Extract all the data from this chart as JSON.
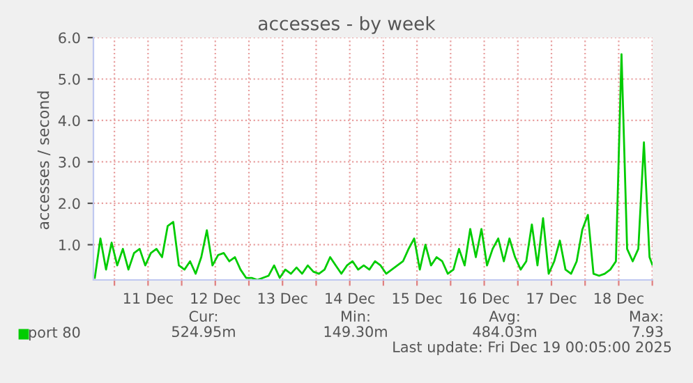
{
  "chart_data": {
    "type": "line",
    "title": "accesses - by week",
    "ylabel": "accesses / second",
    "x": [
      "2025-12-10T17:00",
      "2025-12-10T19:00",
      "2025-12-10T21:00",
      "2025-12-10T23:00",
      "2025-12-11T01:00",
      "2025-12-11T03:00",
      "2025-12-11T05:00",
      "2025-12-11T07:00",
      "2025-12-11T09:00",
      "2025-12-11T11:00",
      "2025-12-11T13:00",
      "2025-12-11T15:00",
      "2025-12-11T17:00",
      "2025-12-11T19:00",
      "2025-12-11T21:00",
      "2025-12-11T23:00",
      "2025-12-12T01:00",
      "2025-12-12T03:00",
      "2025-12-12T05:00",
      "2025-12-12T07:00",
      "2025-12-12T09:00",
      "2025-12-12T11:00",
      "2025-12-12T13:00",
      "2025-12-12T15:00",
      "2025-12-12T17:00",
      "2025-12-12T19:00",
      "2025-12-12T21:00",
      "2025-12-12T23:00",
      "2025-12-13T01:00",
      "2025-12-13T03:00",
      "2025-12-13T05:00",
      "2025-12-13T07:00",
      "2025-12-13T09:00",
      "2025-12-13T11:00",
      "2025-12-13T13:00",
      "2025-12-13T15:00",
      "2025-12-13T17:00",
      "2025-12-13T19:00",
      "2025-12-13T21:00",
      "2025-12-13T23:00",
      "2025-12-14T01:00",
      "2025-12-14T03:00",
      "2025-12-14T05:00",
      "2025-12-14T07:00",
      "2025-12-14T09:00",
      "2025-12-14T11:00",
      "2025-12-14T13:00",
      "2025-12-14T15:00",
      "2025-12-14T17:00",
      "2025-12-14T19:00",
      "2025-12-14T21:00",
      "2025-12-14T23:00",
      "2025-12-15T01:00",
      "2025-12-15T03:00",
      "2025-12-15T05:00",
      "2025-12-15T07:00",
      "2025-12-15T09:00",
      "2025-12-15T11:00",
      "2025-12-15T13:00",
      "2025-12-15T15:00",
      "2025-12-15T17:00",
      "2025-12-15T19:00",
      "2025-12-15T21:00",
      "2025-12-15T23:00",
      "2025-12-16T01:00",
      "2025-12-16T03:00",
      "2025-12-16T05:00",
      "2025-12-16T07:00",
      "2025-12-16T09:00",
      "2025-12-16T11:00",
      "2025-12-16T13:00",
      "2025-12-16T15:00",
      "2025-12-16T17:00",
      "2025-12-16T19:00",
      "2025-12-16T21:00",
      "2025-12-16T23:00",
      "2025-12-17T01:00",
      "2025-12-17T03:00",
      "2025-12-17T05:00",
      "2025-12-17T07:00",
      "2025-12-17T09:00",
      "2025-12-17T11:00",
      "2025-12-17T13:00",
      "2025-12-17T15:00",
      "2025-12-17T17:00",
      "2025-12-17T19:00",
      "2025-12-17T21:00",
      "2025-12-17T23:00",
      "2025-12-18T01:00",
      "2025-12-18T03:00",
      "2025-12-18T05:00",
      "2025-12-18T07:00",
      "2025-12-18T09:00",
      "2025-12-18T11:00",
      "2025-12-18T13:00",
      "2025-12-18T15:00",
      "2025-12-18T17:00",
      "2025-12-18T19:00",
      "2025-12-18T21:00",
      "2025-12-18T23:00",
      "2025-12-19T00:00"
    ],
    "series": [
      {
        "name": "port 80",
        "color": "#00cc00",
        "values": [
          0.2,
          1.15,
          0.4,
          1.05,
          0.5,
          0.9,
          0.4,
          0.8,
          0.9,
          0.5,
          0.8,
          0.9,
          0.7,
          1.45,
          1.55,
          0.5,
          0.4,
          0.6,
          0.3,
          0.7,
          1.35,
          0.5,
          0.75,
          0.8,
          0.6,
          0.7,
          0.4,
          0.2,
          0.2,
          0.15,
          0.2,
          0.25,
          0.5,
          0.2,
          0.4,
          0.3,
          0.45,
          0.3,
          0.5,
          0.35,
          0.3,
          0.4,
          0.7,
          0.5,
          0.3,
          0.5,
          0.6,
          0.4,
          0.5,
          0.4,
          0.6,
          0.5,
          0.3,
          0.4,
          0.5,
          0.6,
          0.9,
          1.15,
          0.4,
          1.0,
          0.5,
          0.7,
          0.6,
          0.3,
          0.4,
          0.9,
          0.5,
          1.38,
          0.7,
          1.38,
          0.5,
          0.9,
          1.15,
          0.6,
          1.15,
          0.7,
          0.4,
          0.6,
          1.49,
          0.5,
          1.64,
          0.3,
          0.6,
          1.1,
          0.4,
          0.3,
          0.6,
          1.36,
          1.72,
          0.3,
          0.25,
          0.3,
          0.4,
          0.6,
          5.6,
          0.9,
          0.6,
          0.9,
          3.47,
          0.7,
          0.52
        ]
      }
    ],
    "xlim": [
      "2025-12-10T16:30",
      "2025-12-19T00:05"
    ],
    "xticks": [
      {
        "value": "2025-12-11T00:00",
        "label": null
      },
      {
        "value": "2025-12-11T12:00",
        "label": "11 Dec"
      },
      {
        "value": "2025-12-12T00:00",
        "label": null
      },
      {
        "value": "2025-12-12T12:00",
        "label": "12 Dec"
      },
      {
        "value": "2025-12-13T00:00",
        "label": null
      },
      {
        "value": "2025-12-13T12:00",
        "label": "13 Dec"
      },
      {
        "value": "2025-12-14T00:00",
        "label": null
      },
      {
        "value": "2025-12-14T12:00",
        "label": "14 Dec"
      },
      {
        "value": "2025-12-15T00:00",
        "label": null
      },
      {
        "value": "2025-12-15T12:00",
        "label": "15 Dec"
      },
      {
        "value": "2025-12-16T00:00",
        "label": null
      },
      {
        "value": "2025-12-16T12:00",
        "label": "16 Dec"
      },
      {
        "value": "2025-12-17T00:00",
        "label": null
      },
      {
        "value": "2025-12-17T12:00",
        "label": "17 Dec"
      },
      {
        "value": "2025-12-18T00:00",
        "label": null
      },
      {
        "value": "2025-12-18T12:00",
        "label": "18 Dec"
      },
      {
        "value": "2025-12-19T00:00",
        "label": null
      }
    ],
    "ylim": [
      0.15,
      6.0
    ],
    "yticks": [
      {
        "value": 1,
        "label": "1.0"
      },
      {
        "value": 2,
        "label": "2.0"
      },
      {
        "value": 3,
        "label": "3.0"
      },
      {
        "value": 4,
        "label": "4.0"
      },
      {
        "value": 5,
        "label": "5.0"
      },
      {
        "value": 6,
        "label": "6.0"
      }
    ],
    "grid": true,
    "legend": "bottom left",
    "marker": "none",
    "line_style": "solid",
    "annotations": [
      "Cur:",
      "Min:",
      "Avg:",
      "Max:",
      "524.95m",
      "149.30m",
      "484.03m",
      "7.93",
      "Last update: Fri Dec 19 00:05:00 2025"
    ]
  }
}
